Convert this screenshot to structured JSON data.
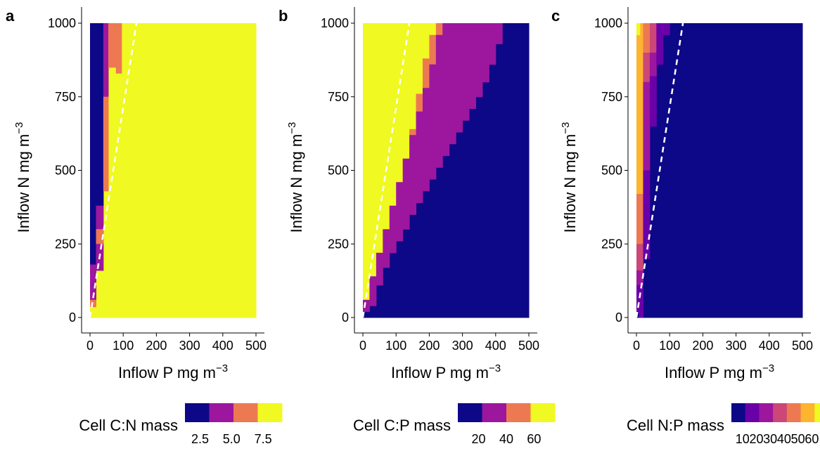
{
  "chart_data": [
    {
      "panel": "a",
      "type": "heatmap",
      "xlabel": "Inflow P mg m",
      "ylabel": "Inflow N mg m",
      "xlabel_exp": "−3",
      "ylabel_exp": "−3",
      "xlim": [
        0,
        500
      ],
      "ylim": [
        0,
        1000
      ],
      "x_ticks": [
        0,
        100,
        200,
        300,
        400,
        500
      ],
      "y_ticks": [
        0,
        250,
        500,
        750,
        1000
      ],
      "grid": false,
      "boundary_line": {
        "style": "dashed",
        "color": "#ffffff",
        "points": [
          [
            0,
            0
          ],
          [
            140,
            1000
          ]
        ]
      },
      "legend": {
        "title": "Cell C:N mass",
        "placement": "bottom",
        "colors": [
          "#0d0887",
          "#9c179e",
          "#ed7953",
          "#f0f921"
        ],
        "tick_labels": [
          "2.5",
          "5.0",
          "7.5"
        ],
        "tick_values": [
          2.5,
          5.0,
          7.5
        ],
        "range": [
          1.3,
          9.0
        ]
      },
      "regions": [
        {
          "class": 3,
          "x0": 0,
          "x1": 500,
          "y0": 0,
          "y1": 1000
        },
        {
          "class": 0,
          "x0": 0,
          "x1": 18,
          "y0": 0,
          "y1": 1000
        },
        {
          "class": 0,
          "x0": 18,
          "x1": 40,
          "y0": 380,
          "y1": 1000
        },
        {
          "class": 1,
          "x0": 40,
          "x1": 55,
          "y0": 750,
          "y1": 1000
        },
        {
          "class": 1,
          "x0": 18,
          "x1": 40,
          "y0": 250,
          "y1": 380
        },
        {
          "class": 2,
          "x0": 40,
          "x1": 55,
          "y0": 620,
          "y1": 750
        },
        {
          "class": 2,
          "x0": 55,
          "x1": 78,
          "y0": 850,
          "y1": 1000
        },
        {
          "class": 2,
          "x0": 78,
          "x1": 95,
          "y0": 830,
          "y1": 1000
        },
        {
          "class": 2,
          "x0": 40,
          "x1": 55,
          "y0": 430,
          "y1": 620
        },
        {
          "class": 2,
          "x0": 18,
          "x1": 40,
          "y0": 250,
          "y1": 300
        },
        {
          "class": 1,
          "x0": 18,
          "x1": 40,
          "y0": 160,
          "y1": 250
        },
        {
          "class": 1,
          "x0": 0,
          "x1": 18,
          "y0": 90,
          "y1": 180
        },
        {
          "class": 1,
          "x0": 0,
          "x1": 18,
          "y0": 60,
          "y1": 90
        },
        {
          "class": 2,
          "x0": 0,
          "x1": 18,
          "y0": 35,
          "y1": 60
        },
        {
          "class": 3,
          "x0": 0,
          "x1": 18,
          "y0": 0,
          "y1": 35
        }
      ]
    },
    {
      "panel": "b",
      "type": "heatmap",
      "xlabel": "Inflow P mg m",
      "ylabel": "Inflow N mg m",
      "xlabel_exp": "−3",
      "ylabel_exp": "−3",
      "xlim": [
        0,
        500
      ],
      "ylim": [
        0,
        1000
      ],
      "x_ticks": [
        0,
        100,
        200,
        300,
        400,
        500
      ],
      "y_ticks": [
        0,
        250,
        500,
        750,
        1000
      ],
      "grid": false,
      "boundary_line": {
        "style": "dashed",
        "color": "#ffffff",
        "points": [
          [
            0,
            0
          ],
          [
            140,
            1000
          ]
        ]
      },
      "legend": {
        "title": "Cell C:P mass",
        "placement": "bottom",
        "colors": [
          "#0d0887",
          "#9c179e",
          "#ed7953",
          "#f0f921"
        ],
        "tick_labels": [
          "20",
          "40",
          "60"
        ],
        "tick_values": [
          20,
          40,
          60
        ],
        "range": [
          5,
          75
        ]
      },
      "staircase_cols": [
        0,
        20,
        40,
        60,
        80,
        100,
        120,
        140,
        160,
        180,
        200,
        220,
        240,
        260,
        280,
        300,
        320,
        340,
        360,
        380,
        400,
        420
      ],
      "staircase_blue_top": [
        20,
        40,
        110,
        170,
        220,
        260,
        300,
        350,
        390,
        430,
        470,
        510,
        550,
        590,
        630,
        670,
        710,
        750,
        800,
        860,
        930,
        1000
      ],
      "staircase_purple_top": [
        60,
        140,
        220,
        300,
        380,
        460,
        540,
        620,
        700,
        780,
        860,
        960,
        1000,
        1000,
        1000,
        1000,
        1000,
        1000,
        1000,
        1000,
        1000,
        1000
      ],
      "staircase_orange_top": [
        0,
        20,
        100,
        200,
        300,
        400,
        520,
        640,
        760,
        880,
        960,
        1000,
        1000,
        1000,
        1000,
        1000,
        1000,
        1000,
        1000,
        1000,
        1000,
        1000
      ]
    },
    {
      "panel": "c",
      "type": "heatmap",
      "xlabel": "Inflow P mg m",
      "ylabel": "Inflow N mg m",
      "xlabel_exp": "−3",
      "ylabel_exp": "−3",
      "xlim": [
        0,
        500
      ],
      "ylim": [
        0,
        1000
      ],
      "x_ticks": [
        0,
        100,
        200,
        300,
        400,
        500
      ],
      "y_ticks": [
        0,
        250,
        500,
        750,
        1000
      ],
      "grid": false,
      "boundary_line": {
        "style": "dashed",
        "color": "#ffffff",
        "points": [
          [
            0,
            0
          ],
          [
            140,
            1000
          ]
        ]
      },
      "legend": {
        "title": "Cell N:P mass",
        "placement": "bottom",
        "colors": [
          "#0d0887",
          "#6a00a8",
          "#9c179e",
          "#cc4778",
          "#ed7953",
          "#fdb42f",
          "#f0f921"
        ],
        "tick_labels": [
          "10",
          "20",
          "30",
          "40",
          "50",
          "60"
        ],
        "tick_values": [
          10,
          20,
          30,
          40,
          50,
          60
        ],
        "range": [
          2,
          72
        ]
      },
      "regions": [
        {
          "class": 0,
          "x0": 0,
          "x1": 500,
          "y0": 0,
          "y1": 1000
        },
        {
          "class": 5,
          "x0": 0,
          "x1": 20,
          "y0": 420,
          "y1": 1000
        },
        {
          "class": 6,
          "x0": 0,
          "x1": 10,
          "y0": 960,
          "y1": 1000
        },
        {
          "class": 4,
          "x0": 0,
          "x1": 20,
          "y0": 250,
          "y1": 420
        },
        {
          "class": 3,
          "x0": 0,
          "x1": 20,
          "y0": 160,
          "y1": 250
        },
        {
          "class": 2,
          "x0": 0,
          "x1": 20,
          "y0": 110,
          "y1": 160
        },
        {
          "class": 1,
          "x0": 0,
          "x1": 20,
          "y0": 0,
          "y1": 110
        },
        {
          "class": 0,
          "x0": 0,
          "x1": 6,
          "y0": 0,
          "y1": 20
        },
        {
          "class": 4,
          "x0": 20,
          "x1": 40,
          "y0": 900,
          "y1": 1000
        },
        {
          "class": 3,
          "x0": 20,
          "x1": 40,
          "y0": 800,
          "y1": 900
        },
        {
          "class": 2,
          "x0": 20,
          "x1": 40,
          "y0": 500,
          "y1": 800
        },
        {
          "class": 1,
          "x0": 20,
          "x1": 40,
          "y0": 200,
          "y1": 500
        },
        {
          "class": 3,
          "x0": 40,
          "x1": 60,
          "y0": 900,
          "y1": 1000
        },
        {
          "class": 2,
          "x0": 40,
          "x1": 60,
          "y0": 820,
          "y1": 900
        },
        {
          "class": 1,
          "x0": 40,
          "x1": 60,
          "y0": 650,
          "y1": 820
        },
        {
          "class": 1,
          "x0": 60,
          "x1": 80,
          "y0": 860,
          "y1": 1000
        },
        {
          "class": 1,
          "x0": 80,
          "x1": 100,
          "y0": 960,
          "y1": 1000
        }
      ]
    }
  ]
}
